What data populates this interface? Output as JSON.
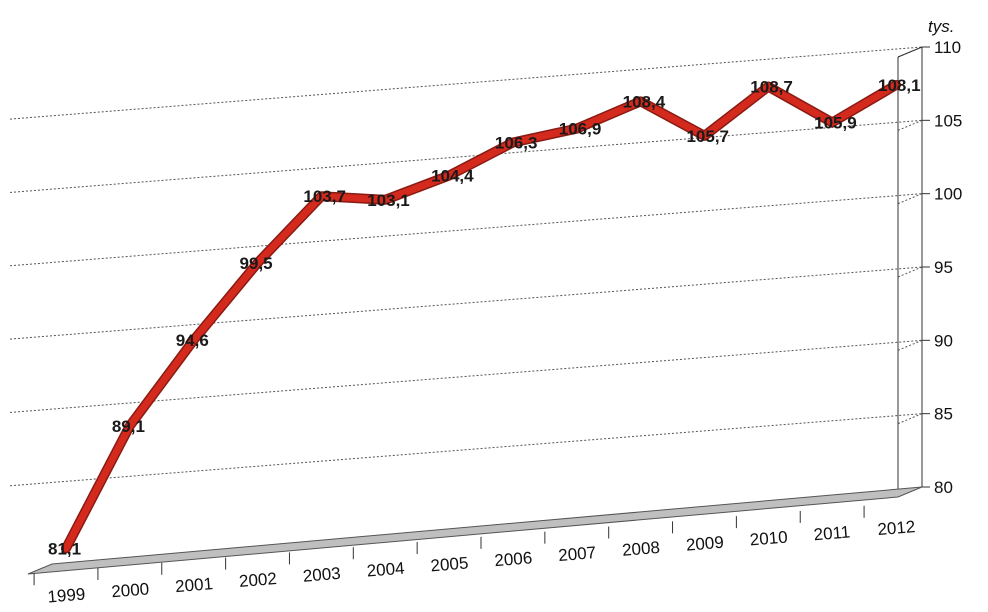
{
  "chart_data": {
    "type": "line",
    "unit_label": "tys.",
    "categories": [
      "1999",
      "2000",
      "2001",
      "2002",
      "2003",
      "2004",
      "2005",
      "2006",
      "2007",
      "2008",
      "2009",
      "2010",
      "2011",
      "2012"
    ],
    "series": [
      {
        "values": [
          81.1,
          89.1,
          94.6,
          99.5,
          103.7,
          103.1,
          104.4,
          106.3,
          106.9,
          108.4,
          105.7,
          108.7,
          105.9,
          108.1
        ],
        "data_labels": [
          "81,1",
          "89,1",
          "94,6",
          "99,5",
          "103,7",
          "103,1",
          "104,4",
          "106,3",
          "106,9",
          "108,4",
          "105,7",
          "108,7",
          "105,9",
          "108,1"
        ]
      }
    ],
    "yticks": [
      "80",
      "85",
      "90",
      "95",
      "100",
      "105",
      "110"
    ],
    "ylim": [
      80,
      110
    ],
    "grid": true,
    "gridline_style": "dotted",
    "style": "3d-perspective",
    "colors": {
      "line": "#d42a1e",
      "line_edge": "#8a1a12",
      "floor": "#bfbfbf",
      "grid": "#555555",
      "axis": "#333333"
    }
  }
}
